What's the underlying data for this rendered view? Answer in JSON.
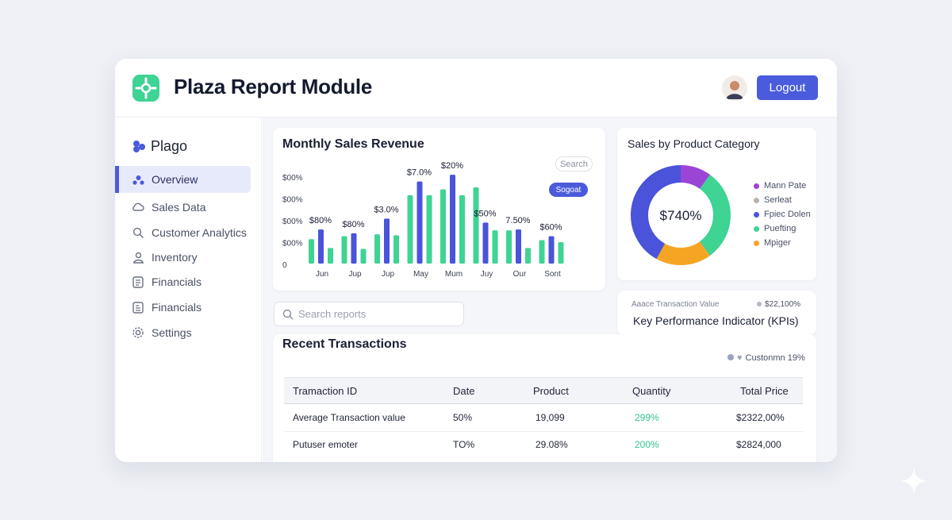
{
  "header": {
    "title": "Plaza Report Module",
    "logout_label": "Logout"
  },
  "sidebar": {
    "brand": "Plago",
    "items": [
      {
        "label": "Overview",
        "icon": "people-icon",
        "active": true
      },
      {
        "label": "Sales Data",
        "icon": "cloud-icon"
      },
      {
        "label": "Customer Analytics",
        "icon": "magnifier-icon"
      },
      {
        "label": "Inventory",
        "icon": "user-icon"
      },
      {
        "label": "Financials",
        "icon": "document-icon"
      },
      {
        "label": "Financials",
        "icon": "ledger-icon"
      },
      {
        "label": "Settings",
        "icon": "gear-icon"
      }
    ]
  },
  "monthly_sales": {
    "title": "Monthly Sales Revenue",
    "search_label": "Search",
    "segment_label": "Sogoat",
    "chart_data": {
      "type": "bar",
      "title": "Monthly Sales Revenue",
      "y_tick_labels": [
        "$00%",
        "$00%",
        "$00%",
        "$00%",
        "0"
      ],
      "categories": [
        "Jun",
        "Jup",
        "Jup",
        "May",
        "Mum",
        "Juy",
        "Our",
        "Sont"
      ],
      "series": [
        {
          "name": "series-green",
          "color": "#3fd394",
          "values": [
            [
              25,
              16
            ],
            [
              28,
              15
            ],
            [
              30,
              29
            ],
            [
              70,
              70
            ],
            [
              76,
              70
            ],
            [
              78,
              34
            ],
            [
              34,
              16
            ],
            [
              24,
              22
            ]
          ]
        },
        {
          "name": "series-blue",
          "color": "#4a53d9",
          "values": [
            35,
            31,
            46,
            84,
            91,
            42,
            35,
            28
          ]
        }
      ],
      "data_labels": [
        "$80%",
        "$80%",
        "$3.0%",
        "$7.0%",
        "$20%",
        "$50%",
        "7.50%",
        "$60%"
      ],
      "ylim": [
        0,
        100
      ]
    }
  },
  "category_sales": {
    "title": "Sales by Product Category",
    "center_label": "$740%",
    "chart_data": {
      "type": "pie",
      "labels": [
        "Mann Pate",
        "Serleat",
        "Fpiec Dolen",
        "Puefting",
        "Mpiger"
      ],
      "colors": [
        "#9a45d6",
        "#b9b1a8",
        "#4a53d9",
        "#3fd394",
        "#f5a524"
      ],
      "values": [
        10,
        0,
        42,
        30,
        18
      ]
    }
  },
  "kpi": {
    "caption": "Aaace Transaction Value",
    "value": "$22,100%",
    "title": "Key Performance Indicator (KPIs)"
  },
  "search": {
    "placeholder": "Search reports"
  },
  "transactions": {
    "title": "Recent Transactions",
    "filter_label": "Custonmn 19%",
    "columns": [
      "Tramaction ID",
      "Date",
      "Product",
      "Quantity",
      "Total Price"
    ],
    "rows": [
      [
        "Average Transaction value",
        "50%",
        "19,099",
        "299%",
        "$2322,00%"
      ],
      [
        "Putuser emoter",
        "TO%",
        "29.08%",
        "200%",
        "$2824,000"
      ]
    ]
  }
}
